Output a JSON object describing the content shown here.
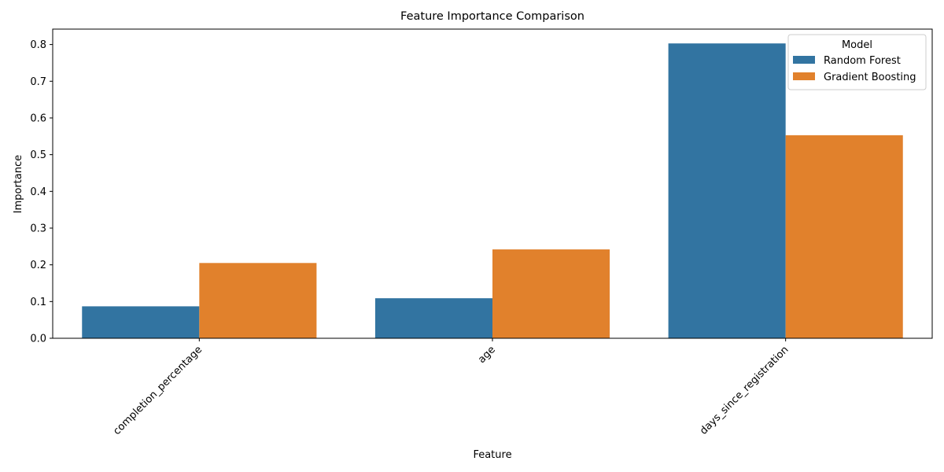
{
  "chart_data": {
    "type": "bar",
    "title": "Feature Importance Comparison",
    "xlabel": "Feature",
    "ylabel": "Importance",
    "categories": [
      "completion_percentage",
      "age",
      "days_since_registration"
    ],
    "series": [
      {
        "name": "Random Forest",
        "color": "#3274a1",
        "values": [
          0.087,
          0.109,
          0.803
        ]
      },
      {
        "name": "Gradient Boosting",
        "color": "#e1812c",
        "values": [
          0.205,
          0.242,
          0.553
        ]
      }
    ],
    "ylim": [
      0,
      0.842
    ],
    "yticks": [
      0.0,
      0.1,
      0.2,
      0.3,
      0.4,
      0.5,
      0.6,
      0.7,
      0.8
    ],
    "ytick_labels": [
      "0.0",
      "0.1",
      "0.2",
      "0.3",
      "0.4",
      "0.5",
      "0.6",
      "0.7",
      "0.8"
    ],
    "xtick_rotation": 45,
    "grid": false,
    "legend": {
      "title": "Model",
      "placement": "top-right"
    }
  }
}
